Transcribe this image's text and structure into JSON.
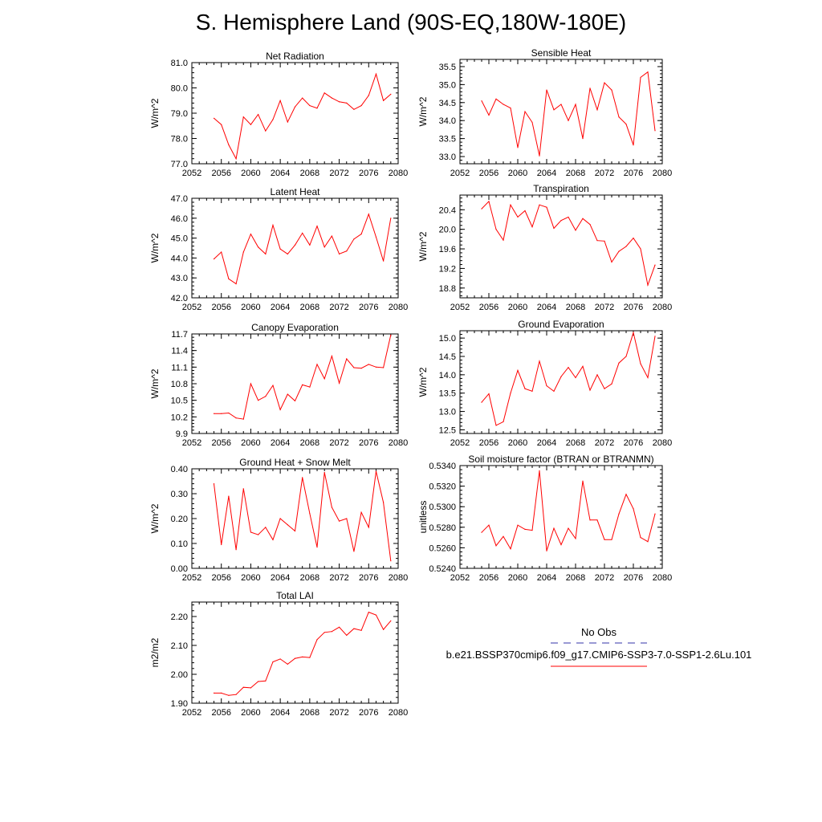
{
  "page": {
    "title": "S. Hemisphere Land (90S-EQ,180W-180E)"
  },
  "legend": {
    "entries": [
      {
        "name": "No Obs",
        "color": "#3333aa",
        "dash": true
      },
      {
        "name": "b.e21.BSSP370cmip6.f09_g17.CMIP6-SSP3-7.0-SSP1-2.6Lu.101",
        "color": "#ff0000",
        "dash": false
      }
    ]
  },
  "colors": {
    "series": "#ff0000",
    "obs": "#3333aa",
    "axis": "#000000"
  },
  "chart_data": [
    {
      "type": "line",
      "title": "Net Radiation",
      "ylabel": "W/m^2",
      "xlim": [
        2052,
        2080
      ],
      "ylim": [
        77.0,
        81.0
      ],
      "x_ticks": [
        2052,
        2056,
        2060,
        2064,
        2068,
        2072,
        2076,
        2080
      ],
      "x_tick_labels": [
        "2052",
        "2056",
        "2060",
        "2064",
        "2068",
        "2072",
        "2076",
        "2080"
      ],
      "y_ticks": [
        77.0,
        78.0,
        79.0,
        80.0,
        81.0
      ],
      "y_tick_labels": [
        "77.0",
        "78.0",
        "79.0",
        "80.0",
        "81.0"
      ],
      "x": [
        2055,
        2056,
        2057,
        2058,
        2059,
        2060,
        2061,
        2062,
        2063,
        2064,
        2065,
        2066,
        2067,
        2068,
        2069,
        2070,
        2071,
        2072,
        2073,
        2074,
        2075,
        2076,
        2077,
        2078,
        2079
      ],
      "values": [
        78.8,
        78.55,
        77.75,
        77.2,
        78.85,
        78.55,
        78.95,
        78.3,
        78.75,
        79.5,
        78.65,
        79.25,
        79.6,
        79.3,
        79.2,
        79.8,
        79.6,
        79.45,
        79.4,
        79.15,
        79.3,
        79.7,
        80.55,
        79.5,
        79.75
      ]
    },
    {
      "type": "line",
      "title": "Sensible Heat",
      "ylabel": "W/m^2",
      "xlim": [
        2052,
        2080
      ],
      "ylim": [
        32.8,
        35.7
      ],
      "x_ticks": [
        2052,
        2056,
        2060,
        2064,
        2068,
        2072,
        2076,
        2080
      ],
      "x_tick_labels": [
        "2052",
        "2056",
        "2060",
        "2064",
        "2068",
        "2072",
        "2076",
        "2080"
      ],
      "y_ticks": [
        33.0,
        33.5,
        34.0,
        34.5,
        35.0,
        35.5
      ],
      "y_tick_labels": [
        "33.0",
        "33.5",
        "34.0",
        "34.5",
        "35.0",
        "35.5"
      ],
      "x": [
        2055,
        2056,
        2057,
        2058,
        2059,
        2060,
        2061,
        2062,
        2063,
        2064,
        2065,
        2066,
        2067,
        2068,
        2069,
        2070,
        2071,
        2072,
        2073,
        2074,
        2075,
        2076,
        2077,
        2078,
        2079
      ],
      "values": [
        34.55,
        34.15,
        34.6,
        34.45,
        34.35,
        33.25,
        34.25,
        33.95,
        33.02,
        34.85,
        34.3,
        34.45,
        34.0,
        34.45,
        33.5,
        34.9,
        34.3,
        35.05,
        34.85,
        34.1,
        33.9,
        33.32,
        35.2,
        35.35,
        33.72
      ]
    },
    {
      "type": "line",
      "title": "Latent Heat",
      "ylabel": "W/m^2",
      "xlim": [
        2052,
        2080
      ],
      "ylim": [
        42.0,
        47.0
      ],
      "x_ticks": [
        2052,
        2056,
        2060,
        2064,
        2068,
        2072,
        2076,
        2080
      ],
      "x_tick_labels": [
        "2052",
        "2056",
        "2060",
        "2064",
        "2068",
        "2072",
        "2076",
        "2080"
      ],
      "y_ticks": [
        42.0,
        43.0,
        44.0,
        45.0,
        46.0,
        47.0
      ],
      "y_tick_labels": [
        "42.0",
        "43.0",
        "44.0",
        "45.0",
        "46.0",
        "47.0"
      ],
      "x": [
        2055,
        2056,
        2057,
        2058,
        2059,
        2060,
        2061,
        2062,
        2063,
        2064,
        2065,
        2066,
        2067,
        2068,
        2069,
        2070,
        2071,
        2072,
        2073,
        2074,
        2075,
        2076,
        2077,
        2078,
        2079
      ],
      "values": [
        43.95,
        44.3,
        42.95,
        42.7,
        44.3,
        45.2,
        44.55,
        44.2,
        45.65,
        44.45,
        44.2,
        44.65,
        45.25,
        44.65,
        45.6,
        44.55,
        45.1,
        44.2,
        44.35,
        44.95,
        45.2,
        46.2,
        45.05,
        43.85,
        46.0
      ]
    },
    {
      "type": "line",
      "title": "Transpiration",
      "ylabel": "W/m^2",
      "xlim": [
        2052,
        2080
      ],
      "ylim": [
        18.6,
        20.7
      ],
      "x_ticks": [
        2052,
        2056,
        2060,
        2064,
        2068,
        2072,
        2076,
        2080
      ],
      "x_tick_labels": [
        "2052",
        "2056",
        "2060",
        "2064",
        "2068",
        "2072",
        "2076",
        "2080"
      ],
      "y_ticks": [
        18.8,
        19.2,
        19.6,
        20.0,
        20.4
      ],
      "y_tick_labels": [
        "18.8",
        "19.2",
        "19.6",
        "20.0",
        "20.4"
      ],
      "x": [
        2055,
        2056,
        2057,
        2058,
        2059,
        2060,
        2061,
        2062,
        2063,
        2064,
        2065,
        2066,
        2067,
        2068,
        2069,
        2070,
        2071,
        2072,
        2073,
        2074,
        2075,
        2076,
        2077,
        2078,
        2079
      ],
      "values": [
        20.42,
        20.57,
        20.0,
        19.78,
        20.5,
        20.25,
        20.38,
        20.05,
        20.5,
        20.45,
        20.02,
        20.18,
        20.25,
        19.98,
        20.22,
        20.1,
        19.77,
        19.76,
        19.33,
        19.55,
        19.65,
        19.82,
        19.6,
        18.86,
        19.27
      ]
    },
    {
      "type": "line",
      "title": "Canopy Evaporation",
      "ylabel": "W/m^2",
      "xlim": [
        2052,
        2080
      ],
      "ylim": [
        9.9,
        11.7
      ],
      "x_ticks": [
        2052,
        2056,
        2060,
        2064,
        2068,
        2072,
        2076,
        2080
      ],
      "x_tick_labels": [
        "2052",
        "2056",
        "2060",
        "2064",
        "2068",
        "2072",
        "2076",
        "2080"
      ],
      "y_ticks": [
        9.9,
        10.2,
        10.5,
        10.8,
        11.1,
        11.4,
        11.7
      ],
      "y_tick_labels": [
        "9.9",
        "10.2",
        "10.5",
        "10.8",
        "11.1",
        "11.4",
        "11.7"
      ],
      "x": [
        2055,
        2056,
        2057,
        2058,
        2059,
        2060,
        2061,
        2062,
        2063,
        2064,
        2065,
        2066,
        2067,
        2068,
        2069,
        2070,
        2071,
        2072,
        2073,
        2074,
        2075,
        2076,
        2077,
        2078,
        2079
      ],
      "values": [
        10.26,
        10.26,
        10.27,
        10.18,
        10.16,
        10.8,
        10.5,
        10.57,
        10.77,
        10.33,
        10.61,
        10.49,
        10.78,
        10.74,
        11.15,
        10.89,
        11.3,
        10.81,
        11.25,
        11.09,
        11.08,
        11.15,
        11.1,
        11.09,
        11.68
      ]
    },
    {
      "type": "line",
      "title": "Ground Evaporation",
      "ylabel": "W/m^2",
      "xlim": [
        2052,
        2080
      ],
      "ylim": [
        12.4,
        15.2
      ],
      "x_ticks": [
        2052,
        2056,
        2060,
        2064,
        2068,
        2072,
        2076,
        2080
      ],
      "x_tick_labels": [
        "2052",
        "2056",
        "2060",
        "2064",
        "2068",
        "2072",
        "2076",
        "2080"
      ],
      "y_ticks": [
        12.5,
        13.0,
        13.5,
        14.0,
        14.5,
        15.0
      ],
      "y_tick_labels": [
        "12.5",
        "13.0",
        "13.5",
        "14.0",
        "14.5",
        "15.0"
      ],
      "x": [
        2055,
        2056,
        2057,
        2058,
        2059,
        2060,
        2061,
        2062,
        2063,
        2064,
        2065,
        2066,
        2067,
        2068,
        2069,
        2070,
        2071,
        2072,
        2073,
        2074,
        2075,
        2076,
        2077,
        2078,
        2079
      ],
      "values": [
        13.25,
        13.48,
        12.62,
        12.72,
        13.5,
        14.12,
        13.62,
        13.55,
        14.37,
        13.7,
        13.55,
        13.95,
        14.2,
        13.92,
        14.23,
        13.58,
        14.0,
        13.62,
        13.75,
        14.32,
        14.5,
        15.15,
        14.3,
        13.92,
        15.05
      ]
    },
    {
      "type": "line",
      "title": "Ground Heat + Snow Melt",
      "ylabel": "W/m^2",
      "xlim": [
        2052,
        2080
      ],
      "ylim": [
        0.0,
        0.4
      ],
      "x_ticks": [
        2052,
        2056,
        2060,
        2064,
        2068,
        2072,
        2076,
        2080
      ],
      "x_tick_labels": [
        "2052",
        "2056",
        "2060",
        "2064",
        "2068",
        "2072",
        "2076",
        "2080"
      ],
      "y_ticks": [
        0.0,
        0.1,
        0.2,
        0.3,
        0.4
      ],
      "y_tick_labels": [
        "0.00",
        "0.10",
        "0.20",
        "0.30",
        "0.40"
      ],
      "x": [
        2055,
        2056,
        2057,
        2058,
        2059,
        2060,
        2061,
        2062,
        2063,
        2064,
        2065,
        2066,
        2067,
        2068,
        2069,
        2070,
        2071,
        2072,
        2073,
        2074,
        2075,
        2076,
        2077,
        2078,
        2079
      ],
      "values": [
        0.34,
        0.095,
        0.29,
        0.075,
        0.32,
        0.145,
        0.135,
        0.165,
        0.115,
        0.2,
        0.175,
        0.15,
        0.365,
        0.22,
        0.085,
        0.385,
        0.245,
        0.19,
        0.2,
        0.068,
        0.225,
        0.165,
        0.39,
        0.265,
        0.03
      ]
    },
    {
      "type": "line",
      "title": "Soil moisture factor (BTRAN or BTRANMN)",
      "ylabel": "unitless",
      "xlim": [
        2052,
        2080
      ],
      "ylim": [
        0.524,
        0.534
      ],
      "x_ticks": [
        2052,
        2056,
        2060,
        2064,
        2068,
        2072,
        2076,
        2080
      ],
      "x_tick_labels": [
        "2052",
        "2056",
        "2060",
        "2064",
        "2068",
        "2072",
        "2076",
        "2080"
      ],
      "y_ticks": [
        0.524,
        0.526,
        0.528,
        0.53,
        0.532,
        0.534
      ],
      "y_tick_labels": [
        "0.5240",
        "0.5260",
        "0.5280",
        "0.5300",
        "0.5320",
        "0.5340"
      ],
      "x": [
        2055,
        2056,
        2057,
        2058,
        2059,
        2060,
        2061,
        2062,
        2063,
        2064,
        2065,
        2066,
        2067,
        2068,
        2069,
        2070,
        2071,
        2072,
        2073,
        2074,
        2075,
        2076,
        2077,
        2078,
        2079
      ],
      "values": [
        0.5275,
        0.5282,
        0.5262,
        0.5271,
        0.5259,
        0.5282,
        0.5278,
        0.5277,
        0.5335,
        0.5257,
        0.5279,
        0.5263,
        0.5279,
        0.5269,
        0.5325,
        0.5287,
        0.5287,
        0.5268,
        0.5268,
        0.5293,
        0.5312,
        0.5298,
        0.527,
        0.5266,
        0.5293
      ]
    },
    {
      "type": "line",
      "title": "Total LAI",
      "ylabel": "m2/m2",
      "xlim": [
        2052,
        2080
      ],
      "ylim": [
        1.9,
        2.25
      ],
      "x_ticks": [
        2052,
        2056,
        2060,
        2064,
        2068,
        2072,
        2076,
        2080
      ],
      "x_tick_labels": [
        "2052",
        "2056",
        "2060",
        "2064",
        "2068",
        "2072",
        "2076",
        "2080"
      ],
      "y_ticks": [
        1.9,
        2.0,
        2.1,
        2.2
      ],
      "y_tick_labels": [
        "1.90",
        "2.00",
        "2.10",
        "2.20"
      ],
      "x": [
        2055,
        2056,
        2057,
        2058,
        2059,
        2060,
        2061,
        2062,
        2063,
        2064,
        2065,
        2066,
        2067,
        2068,
        2069,
        2070,
        2071,
        2072,
        2073,
        2074,
        2075,
        2076,
        2077,
        2078,
        2079
      ],
      "values": [
        1.935,
        1.935,
        1.927,
        1.93,
        1.955,
        1.953,
        1.975,
        1.977,
        2.043,
        2.053,
        2.035,
        2.055,
        2.06,
        2.058,
        2.12,
        2.145,
        2.148,
        2.163,
        2.135,
        2.158,
        2.152,
        2.215,
        2.205,
        2.155,
        2.185
      ]
    }
  ]
}
